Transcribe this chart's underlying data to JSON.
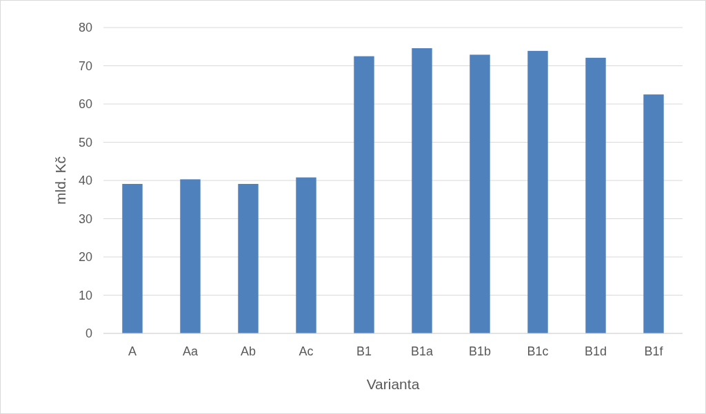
{
  "chart_data": {
    "type": "bar",
    "xlabel": "Varianta",
    "ylabel": "mld. Kč",
    "categories": [
      "A",
      "Aa",
      "Ab",
      "Ac",
      "B1",
      "B1a",
      "B1b",
      "B1c",
      "B1d",
      "B1f"
    ],
    "values": [
      39.1,
      40.3,
      39.1,
      40.8,
      72.5,
      74.6,
      72.9,
      73.9,
      72.1,
      62.5
    ],
    "color": "#4f81bd",
    "ylim": [
      0,
      80
    ],
    "yticks": [
      0,
      10,
      20,
      30,
      40,
      50,
      60,
      70,
      80
    ],
    "grid": "y"
  }
}
